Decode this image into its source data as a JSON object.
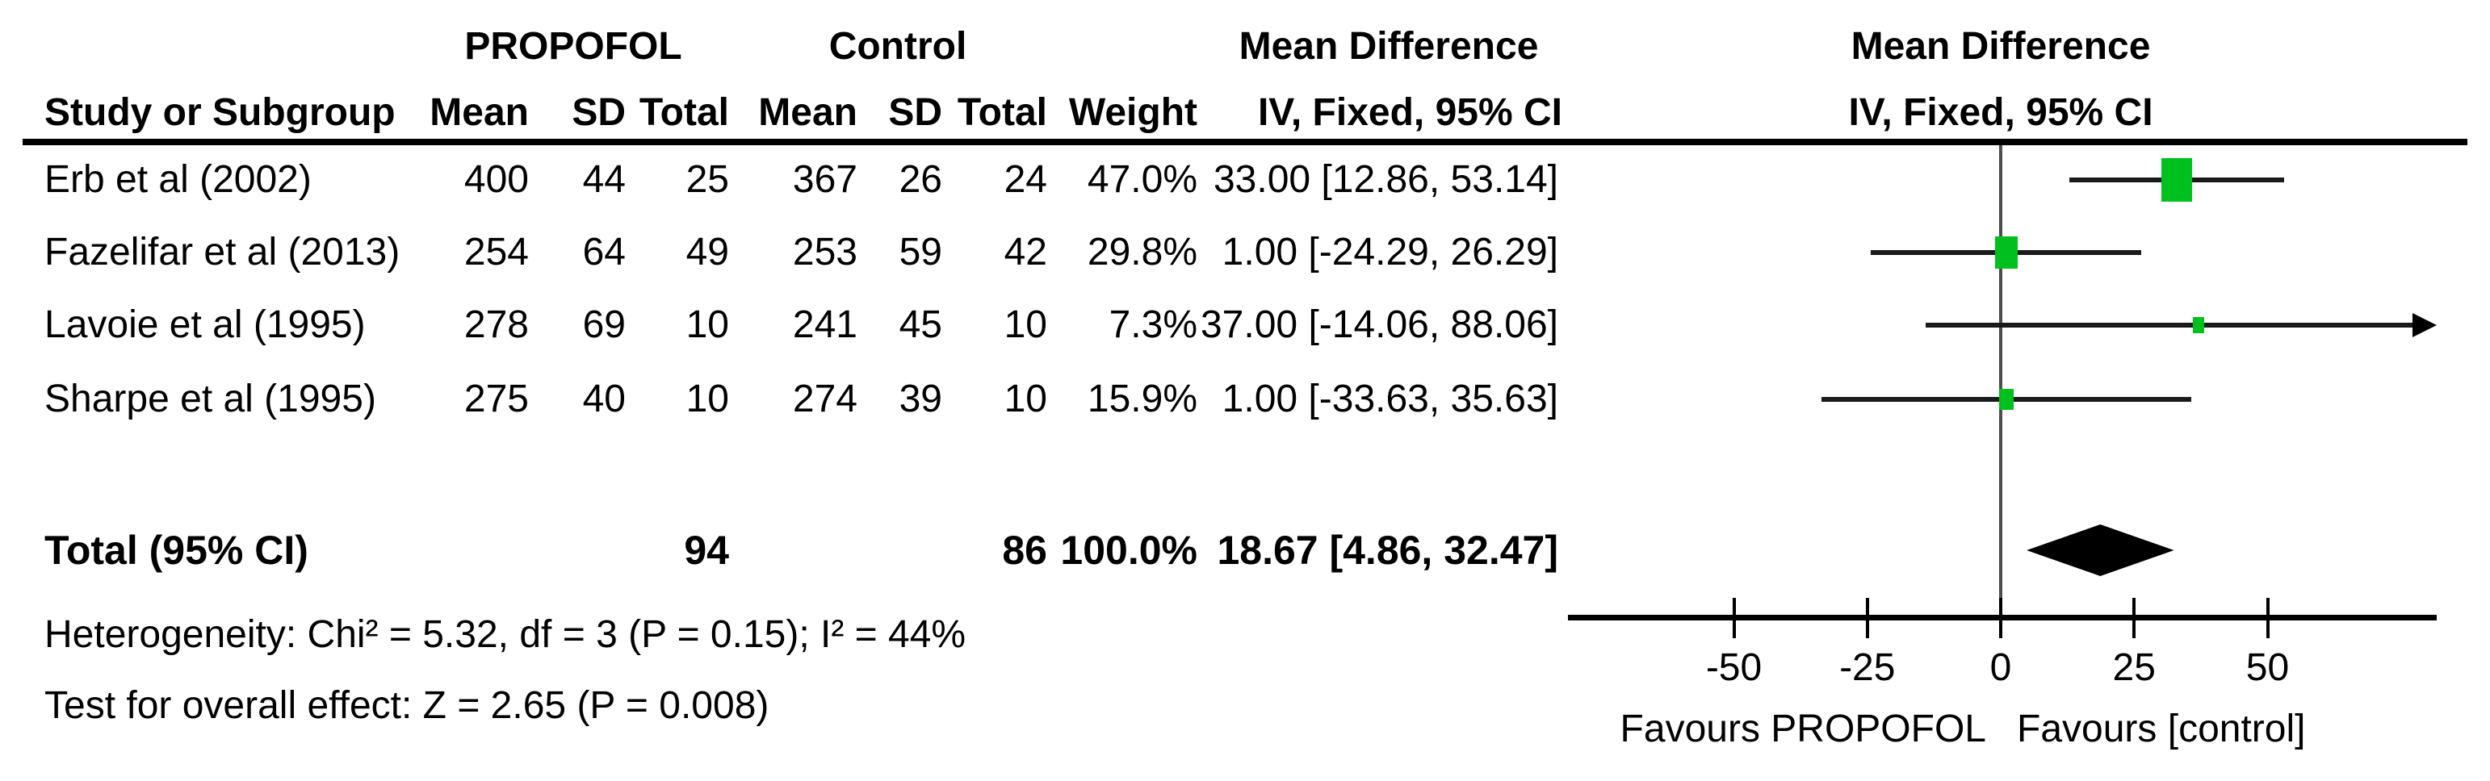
{
  "header": {
    "group1": "PROPOFOL",
    "group2": "Control",
    "study_col": "Study or Subgroup",
    "mean": "Mean",
    "sd": "SD",
    "total": "Total",
    "weight": "Weight",
    "md_title": "Mean Difference",
    "md_sub": "IV, Fixed, 95% CI",
    "plot_title": "Mean Difference",
    "plot_sub": "IV, Fixed, 95% CI"
  },
  "rows": [
    {
      "study": "Erb et al (2002)",
      "mean1": "400",
      "sd1": "44",
      "total1": "25",
      "mean2": "367",
      "sd2": "26",
      "total2": "24",
      "weight": "47.0%",
      "ci": "33.00 [12.86, 53.14]"
    },
    {
      "study": "Fazelifar et al (2013)",
      "mean1": "254",
      "sd1": "64",
      "total1": "49",
      "mean2": "253",
      "sd2": "59",
      "total2": "42",
      "weight": "29.8%",
      "ci": "1.00 [-24.29, 26.29]"
    },
    {
      "study": "Lavoie et al (1995)",
      "mean1": "278",
      "sd1": "69",
      "total1": "10",
      "mean2": "241",
      "sd2": "45",
      "total2": "10",
      "weight": "7.3%",
      "ci": "37.00 [-14.06, 88.06]"
    },
    {
      "study": "Sharpe et al (1995)",
      "mean1": "275",
      "sd1": "40",
      "total1": "10",
      "mean2": "274",
      "sd2": "39",
      "total2": "10",
      "weight": "15.9%",
      "ci": "1.00 [-33.63, 35.63]"
    }
  ],
  "total_row": {
    "label": "Total (95% CI)",
    "total1": "94",
    "total2": "86",
    "weight": "100.0%",
    "ci": "18.67 [4.86, 32.47]"
  },
  "footer": {
    "heterogeneity": "Heterogeneity: Chi² = 5.32, df = 3 (P = 0.15); I² = 44%",
    "overall_effect": "Test for overall effect: Z = 2.65 (P = 0.008)"
  },
  "axis_labels": {
    "favours_left": "Favours PROPOFOL",
    "favours_right": "Favours [control]"
  },
  "chart_data": {
    "type": "forest",
    "effect_measure": "Mean Difference",
    "model": "IV, Fixed, 95% CI",
    "studies": [
      {
        "name": "Erb et al (2002)",
        "mean1": 400,
        "sd1": 44,
        "n1": 25,
        "mean2": 367,
        "sd2": 26,
        "n2": 24,
        "weight_pct": 47.0,
        "md": 33.0,
        "ci_low": 12.86,
        "ci_high": 53.14,
        "arrow_high": false
      },
      {
        "name": "Fazelifar et al (2013)",
        "mean1": 254,
        "sd1": 64,
        "n1": 49,
        "mean2": 253,
        "sd2": 59,
        "n2": 42,
        "weight_pct": 29.8,
        "md": 1.0,
        "ci_low": -24.29,
        "ci_high": 26.29,
        "arrow_high": false
      },
      {
        "name": "Lavoie et al (1995)",
        "mean1": 278,
        "sd1": 69,
        "n1": 10,
        "mean2": 241,
        "sd2": 45,
        "n2": 10,
        "weight_pct": 7.3,
        "md": 37.0,
        "ci_low": -14.06,
        "ci_high": 88.06,
        "arrow_high": true
      },
      {
        "name": "Sharpe et al (1995)",
        "mean1": 275,
        "sd1": 40,
        "n1": 10,
        "mean2": 274,
        "sd2": 39,
        "n2": 10,
        "weight_pct": 15.9,
        "md": 1.0,
        "ci_low": -33.63,
        "ci_high": 35.63,
        "arrow_high": false
      }
    ],
    "total": {
      "n1": 94,
      "n2": 86,
      "weight_pct": 100.0,
      "md": 18.67,
      "ci_low": 4.86,
      "ci_high": 32.47
    },
    "heterogeneity": {
      "chi2": 5.32,
      "df": 3,
      "p": 0.15,
      "i2_pct": 44
    },
    "overall_effect": {
      "z": 2.65,
      "p": 0.008
    },
    "axis": {
      "ticks": [
        -50,
        -25,
        0,
        25,
        50
      ],
      "draw_min": -81,
      "draw_max": 81
    },
    "legend": {
      "left": "Favours PROPOFOL",
      "right": "Favours [control]"
    },
    "colors": {
      "square": "#00c01d",
      "diamond": "#000000",
      "line": "#1a1a1a",
      "zero_line": "#4d4d4d"
    }
  }
}
